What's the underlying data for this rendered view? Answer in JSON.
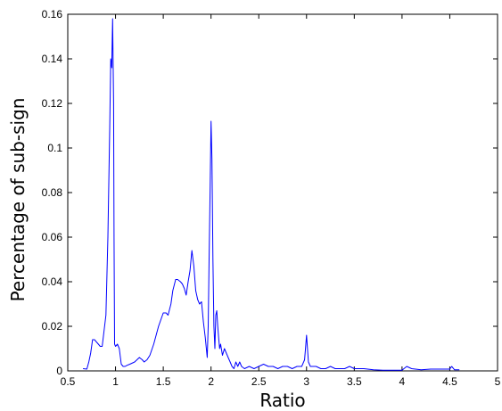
{
  "chart_data": {
    "type": "line",
    "title": "",
    "xlabel": "Ratio",
    "ylabel": "Percentage of sub-sign",
    "xlim": [
      0.5,
      5
    ],
    "ylim": [
      0,
      0.16
    ],
    "x_ticks": [
      0.5,
      1,
      1.5,
      2,
      2.5,
      3,
      3.5,
      4,
      4.5,
      5
    ],
    "x_tick_labels": [
      "0.5",
      "1",
      "1.5",
      "2",
      "2.5",
      "3",
      "3.5",
      "4",
      "4.5",
      "5"
    ],
    "y_ticks": [
      0,
      0.02,
      0.04,
      0.06,
      0.08,
      0.1,
      0.12,
      0.14,
      0.16
    ],
    "y_tick_labels": [
      "0",
      "0.02",
      "0.04",
      "0.06",
      "0.08",
      "0.1",
      "0.12",
      "0.14",
      "0.16"
    ],
    "grid": false,
    "line_color": "#0000ff",
    "series": [
      {
        "x": [
          0.66,
          0.7,
          0.72,
          0.74,
          0.76,
          0.78,
          0.8,
          0.82,
          0.84,
          0.86,
          0.88,
          0.9,
          0.92,
          0.94,
          0.95,
          0.96,
          0.97,
          0.98,
          0.985,
          0.99,
          1.0,
          1.02,
          1.04,
          1.06,
          1.08,
          1.1,
          1.12,
          1.15,
          1.2,
          1.25,
          1.28,
          1.3,
          1.33,
          1.36,
          1.4,
          1.45,
          1.5,
          1.53,
          1.55,
          1.58,
          1.6,
          1.63,
          1.65,
          1.68,
          1.7,
          1.72,
          1.74,
          1.76,
          1.78,
          1.8,
          1.82,
          1.84,
          1.86,
          1.88,
          1.9,
          1.92,
          1.94,
          1.96,
          1.97,
          1.98,
          1.99,
          2.0,
          2.01,
          2.02,
          2.03,
          2.04,
          2.05,
          2.06,
          2.07,
          2.08,
          2.09,
          2.1,
          2.12,
          2.14,
          2.16,
          2.18,
          2.2,
          2.22,
          2.24,
          2.26,
          2.28,
          2.3,
          2.32,
          2.35,
          2.4,
          2.45,
          2.5,
          2.55,
          2.6,
          2.65,
          2.7,
          2.75,
          2.8,
          2.85,
          2.9,
          2.95,
          2.98,
          3.0,
          3.02,
          3.04,
          3.06,
          3.1,
          3.15,
          3.2,
          3.25,
          3.3,
          3.35,
          3.4,
          3.45,
          3.5,
          3.6,
          3.7,
          3.8,
          3.9,
          4.0,
          4.02,
          4.05,
          4.1,
          4.2,
          4.3,
          4.4,
          4.5,
          4.52,
          4.55,
          4.6
        ],
        "y": [
          0.001,
          0.0008,
          0.004,
          0.008,
          0.014,
          0.014,
          0.013,
          0.012,
          0.011,
          0.011,
          0.018,
          0.025,
          0.06,
          0.11,
          0.14,
          0.136,
          0.158,
          0.12,
          0.06,
          0.012,
          0.011,
          0.012,
          0.01,
          0.003,
          0.002,
          0.002,
          0.0025,
          0.003,
          0.004,
          0.006,
          0.005,
          0.004,
          0.005,
          0.007,
          0.012,
          0.02,
          0.026,
          0.026,
          0.025,
          0.03,
          0.036,
          0.041,
          0.041,
          0.04,
          0.039,
          0.037,
          0.034,
          0.04,
          0.045,
          0.054,
          0.047,
          0.036,
          0.032,
          0.03,
          0.031,
          0.022,
          0.015,
          0.006,
          0.02,
          0.05,
          0.08,
          0.112,
          0.095,
          0.05,
          0.02,
          0.01,
          0.025,
          0.027,
          0.02,
          0.015,
          0.01,
          0.012,
          0.007,
          0.01,
          0.008,
          0.006,
          0.004,
          0.002,
          0.001,
          0.004,
          0.002,
          0.004,
          0.002,
          0.001,
          0.002,
          0.001,
          0.002,
          0.003,
          0.002,
          0.002,
          0.001,
          0.002,
          0.002,
          0.001,
          0.002,
          0.002,
          0.005,
          0.016,
          0.004,
          0.002,
          0.002,
          0.002,
          0.001,
          0.001,
          0.002,
          0.001,
          0.001,
          0.001,
          0.002,
          0.001,
          0.001,
          0.0005,
          0.0003,
          0.0003,
          0.0003,
          0.001,
          0.002,
          0.001,
          0.0005,
          0.0008,
          0.0008,
          0.0008,
          0.002,
          0.0005,
          0.0005
        ]
      }
    ]
  }
}
